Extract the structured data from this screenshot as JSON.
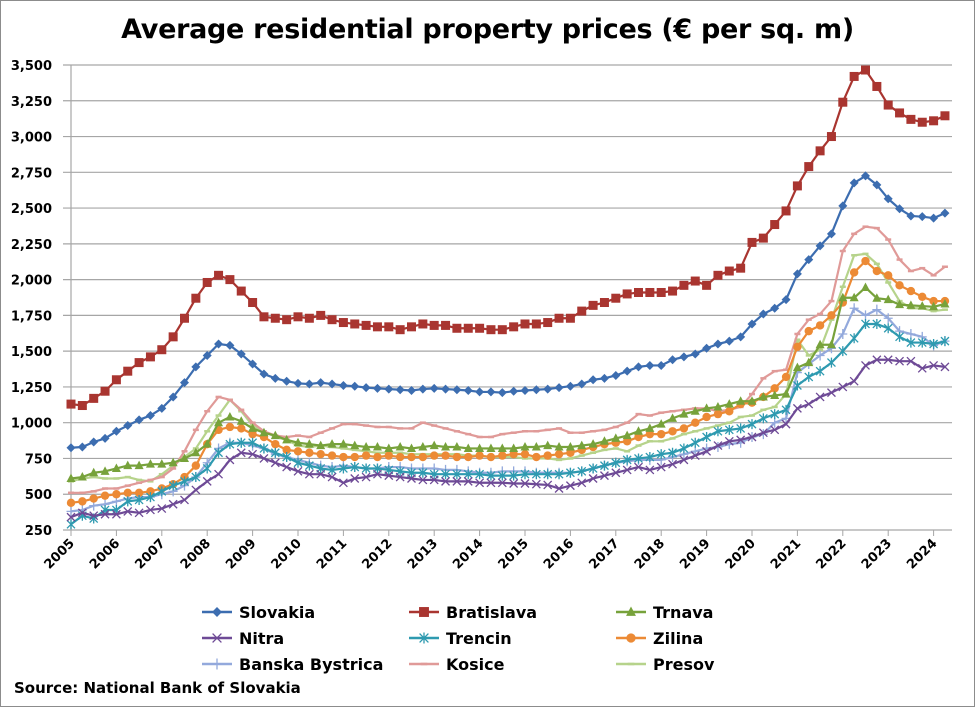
{
  "chart_data": {
    "type": "line",
    "title": "Average residential property prices (€ per sq. m)",
    "xlabel": "",
    "ylabel": "",
    "frequency": "quarterly",
    "x_start": "2005Q1",
    "x_end": "2024Q2",
    "x_tick_labels": [
      "2005",
      "2006",
      "2007",
      "2008",
      "2009",
      "2010",
      "2011",
      "2012",
      "2013",
      "2014",
      "2015",
      "2016",
      "2017",
      "2018",
      "2019",
      "2020",
      "2021",
      "2022",
      "2023",
      "2024"
    ],
    "y_tick_labels": [
      "250",
      "500",
      "750",
      "1,000",
      "1,250",
      "1,500",
      "1,750",
      "2,000",
      "2,250",
      "2,500",
      "2,750",
      "3,000",
      "3,250",
      "3,500"
    ],
    "ylim": [
      250,
      3500
    ],
    "grid": "horizontal",
    "legend_position": "bottom",
    "series": [
      {
        "name": "Slovakia",
        "color": "#3c6db0",
        "marker": "diamond",
        "values": [
          825,
          830,
          865,
          890,
          940,
          980,
          1020,
          1050,
          1100,
          1180,
          1280,
          1390,
          1470,
          1550,
          1540,
          1480,
          1410,
          1340,
          1310,
          1290,
          1275,
          1270,
          1280,
          1270,
          1260,
          1255,
          1245,
          1240,
          1235,
          1230,
          1225,
          1235,
          1240,
          1235,
          1230,
          1225,
          1215,
          1215,
          1210,
          1220,
          1225,
          1230,
          1235,
          1245,
          1255,
          1270,
          1300,
          1310,
          1330,
          1360,
          1390,
          1400,
          1400,
          1440,
          1460,
          1480,
          1520,
          1550,
          1570,
          1600,
          1690,
          1760,
          1800,
          1860,
          2040,
          2140,
          2236,
          2320,
          2515,
          2676,
          2725,
          2662,
          2565,
          2495,
          2445,
          2440,
          2430,
          2465
        ]
      },
      {
        "name": "Bratislava",
        "color": "#a93530",
        "marker": "square",
        "values": [
          1130,
          1120,
          1170,
          1220,
          1300,
          1360,
          1420,
          1460,
          1510,
          1600,
          1730,
          1870,
          1980,
          2030,
          2000,
          1920,
          1840,
          1740,
          1730,
          1720,
          1740,
          1730,
          1750,
          1720,
          1700,
          1690,
          1680,
          1670,
          1670,
          1650,
          1670,
          1690,
          1680,
          1680,
          1660,
          1660,
          1660,
          1650,
          1650,
          1670,
          1690,
          1690,
          1700,
          1730,
          1730,
          1780,
          1820,
          1840,
          1870,
          1900,
          1910,
          1910,
          1910,
          1920,
          1960,
          1990,
          1960,
          2030,
          2060,
          2080,
          2260,
          2290,
          2385,
          2480,
          2655,
          2790,
          2900,
          3000,
          3240,
          3420,
          3465,
          3350,
          3220,
          3165,
          3120,
          3100,
          3110,
          3145
        ]
      },
      {
        "name": "Trnava",
        "color": "#77a23b",
        "marker": "triangle",
        "values": [
          610,
          620,
          650,
          660,
          680,
          700,
          700,
          710,
          710,
          720,
          750,
          790,
          850,
          1000,
          1040,
          1010,
          960,
          930,
          910,
          880,
          860,
          850,
          840,
          850,
          850,
          840,
          830,
          830,
          820,
          830,
          820,
          830,
          840,
          830,
          830,
          820,
          820,
          820,
          820,
          820,
          830,
          830,
          840,
          830,
          830,
          840,
          850,
          870,
          890,
          910,
          940,
          960,
          990,
          1030,
          1060,
          1080,
          1100,
          1110,
          1130,
          1150,
          1150,
          1180,
          1190,
          1200,
          1385,
          1420,
          1545,
          1545,
          1873,
          1873,
          1945,
          1870,
          1860,
          1825,
          1820,
          1815,
          1810,
          1830
        ]
      },
      {
        "name": "Nitra",
        "color": "#6e4a96",
        "marker": "x",
        "values": [
          340,
          370,
          350,
          360,
          360,
          380,
          370,
          390,
          400,
          430,
          460,
          530,
          590,
          640,
          740,
          790,
          780,
          750,
          720,
          690,
          660,
          640,
          640,
          620,
          580,
          610,
          620,
          640,
          630,
          620,
          610,
          600,
          600,
          590,
          590,
          590,
          580,
          580,
          580,
          575,
          575,
          570,
          565,
          540,
          560,
          580,
          610,
          630,
          650,
          670,
          690,
          670,
          690,
          710,
          740,
          770,
          800,
          840,
          870,
          880,
          900,
          930,
          950,
          990,
          1100,
          1130,
          1180,
          1210,
          1250,
          1290,
          1400,
          1440,
          1440,
          1430,
          1430,
          1380,
          1400,
          1390
        ]
      },
      {
        "name": "Trencin",
        "color": "#2e9ab0",
        "marker": "asterisk",
        "values": [
          290,
          350,
          330,
          390,
          390,
          450,
          460,
          480,
          520,
          560,
          590,
          620,
          680,
          790,
          850,
          860,
          860,
          820,
          790,
          760,
          720,
          700,
          680,
          670,
          680,
          690,
          680,
          680,
          670,
          660,
          650,
          650,
          640,
          640,
          640,
          640,
          640,
          630,
          630,
          630,
          640,
          640,
          640,
          640,
          650,
          660,
          680,
          700,
          720,
          740,
          750,
          760,
          780,
          790,
          820,
          860,
          900,
          940,
          950,
          960,
          990,
          1030,
          1060,
          1090,
          1260,
          1320,
          1360,
          1420,
          1500,
          1590,
          1690,
          1690,
          1660,
          1600,
          1560,
          1560,
          1550,
          1570
        ]
      },
      {
        "name": "Zilina",
        "color": "#ec8a35",
        "marker": "circle",
        "values": [
          440,
          450,
          470,
          490,
          500,
          510,
          510,
          520,
          540,
          570,
          620,
          700,
          850,
          950,
          970,
          960,
          920,
          900,
          850,
          810,
          800,
          790,
          780,
          770,
          760,
          760,
          770,
          760,
          770,
          760,
          760,
          760,
          770,
          770,
          760,
          760,
          770,
          760,
          770,
          780,
          780,
          760,
          770,
          780,
          790,
          810,
          830,
          850,
          860,
          870,
          900,
          920,
          920,
          940,
          960,
          1000,
          1040,
          1060,
          1080,
          1130,
          1140,
          1180,
          1240,
          1320,
          1530,
          1640,
          1680,
          1750,
          1840,
          2050,
          2130,
          2060,
          2030,
          1960,
          1920,
          1880,
          1850,
          1850
        ]
      },
      {
        "name": "Banska Bystrica",
        "color": "#93a9dc",
        "marker": "plus",
        "values": [
          380,
          390,
          420,
          430,
          450,
          470,
          480,
          480,
          500,
          520,
          560,
          620,
          720,
          820,
          860,
          860,
          840,
          820,
          780,
          760,
          740,
          720,
          700,
          690,
          700,
          690,
          680,
          680,
          690,
          690,
          680,
          680,
          680,
          670,
          670,
          660,
          650,
          650,
          660,
          660,
          660,
          650,
          650,
          650,
          650,
          660,
          680,
          700,
          720,
          730,
          740,
          740,
          740,
          760,
          780,
          800,
          820,
          830,
          850,
          860,
          900,
          920,
          1000,
          1030,
          1350,
          1410,
          1470,
          1520,
          1620,
          1800,
          1750,
          1790,
          1730,
          1640,
          1620,
          1600,
          1540,
          1570
        ]
      },
      {
        "name": "Kosice",
        "color": "#e09a98",
        "marker": "dash",
        "values": [
          510,
          510,
          520,
          540,
          540,
          560,
          580,
          600,
          620,
          680,
          800,
          950,
          1080,
          1180,
          1160,
          1090,
          1000,
          940,
          910,
          900,
          910,
          900,
          930,
          960,
          990,
          990,
          980,
          970,
          970,
          960,
          960,
          1000,
          980,
          960,
          940,
          920,
          900,
          900,
          920,
          930,
          940,
          940,
          950,
          960,
          930,
          930,
          940,
          950,
          970,
          1000,
          1060,
          1050,
          1070,
          1080,
          1090,
          1100,
          1100,
          1080,
          1090,
          1110,
          1200,
          1310,
          1360,
          1370,
          1620,
          1720,
          1760,
          1850,
          2200,
          2320,
          2370,
          2360,
          2280,
          2140,
          2060,
          2080,
          2030,
          2090
        ]
      },
      {
        "name": "Presov",
        "color": "#b6d38b",
        "marker": "dash",
        "values": [
          590,
          610,
          620,
          610,
          610,
          620,
          600,
          590,
          640,
          700,
          760,
          820,
          940,
          1050,
          1160,
          1080,
          980,
          940,
          900,
          880,
          840,
          830,
          840,
          830,
          820,
          810,
          800,
          790,
          790,
          790,
          780,
          780,
          780,
          780,
          780,
          770,
          770,
          760,
          760,
          760,
          750,
          750,
          750,
          740,
          750,
          770,
          790,
          810,
          820,
          800,
          840,
          870,
          870,
          890,
          920,
          940,
          960,
          980,
          1000,
          1040,
          1050,
          1090,
          1110,
          1200,
          1580,
          1470,
          1510,
          1720,
          1950,
          2170,
          2180,
          2110,
          1980,
          1850,
          1800,
          1800,
          1780,
          1790
        ]
      }
    ]
  },
  "footer": {
    "source": "Source: National Bank of Slovakia"
  }
}
